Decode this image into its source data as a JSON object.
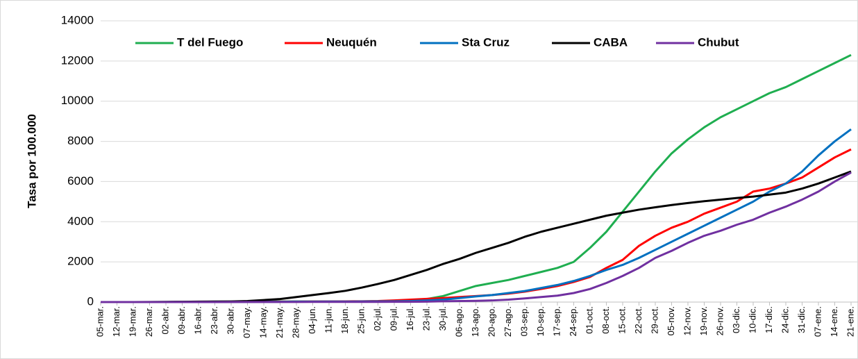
{
  "chart_data": {
    "type": "line",
    "y_label": "Tasa por 100.000",
    "categories": [
      "05-mar.",
      "12-mar.",
      "19-mar.",
      "26-mar.",
      "02-abr.",
      "09-abr.",
      "16-abr.",
      "23-abr.",
      "30-abr.",
      "07-may.",
      "14-may.",
      "21-may.",
      "28-may.",
      "04-jun.",
      "11-jun.",
      "18-jun.",
      "25-jun.",
      "02-jul.",
      "09-jul.",
      "16-jul.",
      "23-jul.",
      "30-jul.",
      "06-ago.",
      "13-ago.",
      "20-ago.",
      "27-ago.",
      "03-sep.",
      "10-sep.",
      "17-sep.",
      "24-sep.",
      "01-oct.",
      "08-oct.",
      "15-oct.",
      "22-oct.",
      "29-oct.",
      "05-nov.",
      "12-nov.",
      "19-nov.",
      "26-nov.",
      "03-dic.",
      "10-dic.",
      "17-dic.",
      "24-dic.",
      "31-dic.",
      "07-ene.",
      "14-ene.",
      "21-ene."
    ],
    "series": [
      {
        "name": "T del Fuego",
        "color": "#1fae50",
        "values": [
          0,
          0,
          0,
          0,
          5,
          10,
          15,
          20,
          20,
          25,
          25,
          30,
          30,
          30,
          30,
          35,
          35,
          40,
          45,
          50,
          150,
          300,
          550,
          800,
          950,
          1100,
          1300,
          1500,
          1700,
          2000,
          2700,
          3500,
          4500,
          5500,
          6500,
          7400,
          8100,
          8700,
          9200,
          9600,
          10000,
          10400,
          10700,
          11100,
          11500,
          11900,
          12300
        ]
      },
      {
        "name": "Neuquén",
        "color": "#ff0000",
        "values": [
          0,
          0,
          0,
          0,
          0,
          5,
          5,
          10,
          10,
          15,
          15,
          20,
          20,
          25,
          30,
          35,
          40,
          50,
          80,
          120,
          160,
          200,
          250,
          300,
          350,
          420,
          520,
          650,
          800,
          1000,
          1250,
          1700,
          2100,
          2800,
          3300,
          3700,
          4000,
          4400,
          4700,
          5000,
          5500,
          5650,
          5900,
          6200,
          6700,
          7200,
          7600
        ]
      },
      {
        "name": "Sta Cruz",
        "color": "#0070c0",
        "values": [
          0,
          0,
          0,
          0,
          0,
          5,
          5,
          10,
          10,
          10,
          15,
          15,
          20,
          20,
          25,
          25,
          30,
          35,
          40,
          50,
          80,
          120,
          200,
          280,
          350,
          450,
          550,
          700,
          850,
          1050,
          1300,
          1600,
          1850,
          2200,
          2600,
          3000,
          3400,
          3800,
          4200,
          4600,
          5000,
          5500,
          5900,
          6500,
          7300,
          8000,
          8600
        ]
      },
      {
        "name": "CABA",
        "color": "#000000",
        "values": [
          0,
          0,
          0,
          5,
          10,
          15,
          20,
          25,
          30,
          50,
          100,
          150,
          250,
          350,
          450,
          560,
          720,
          900,
          1100,
          1350,
          1600,
          1900,
          2150,
          2450,
          2700,
          2950,
          3250,
          3500,
          3700,
          3900,
          4100,
          4300,
          4450,
          4600,
          4720,
          4830,
          4930,
          5020,
          5100,
          5180,
          5250,
          5350,
          5450,
          5650,
          5900,
          6200,
          6500
        ]
      },
      {
        "name": "Chubut",
        "color": "#7030a0",
        "values": [
          0,
          0,
          0,
          0,
          0,
          0,
          0,
          0,
          5,
          5,
          5,
          5,
          5,
          10,
          10,
          10,
          10,
          10,
          15,
          15,
          20,
          40,
          50,
          60,
          80,
          120,
          180,
          250,
          320,
          450,
          650,
          950,
          1300,
          1700,
          2200,
          2550,
          2950,
          3300,
          3550,
          3850,
          4100,
          4450,
          4750,
          5100,
          5500,
          6000,
          6450
        ]
      }
    ],
    "ylim": [
      0,
      14000
    ],
    "yticks": [
      0,
      2000,
      4000,
      6000,
      8000,
      10000,
      12000,
      14000
    ],
    "grid": true
  }
}
